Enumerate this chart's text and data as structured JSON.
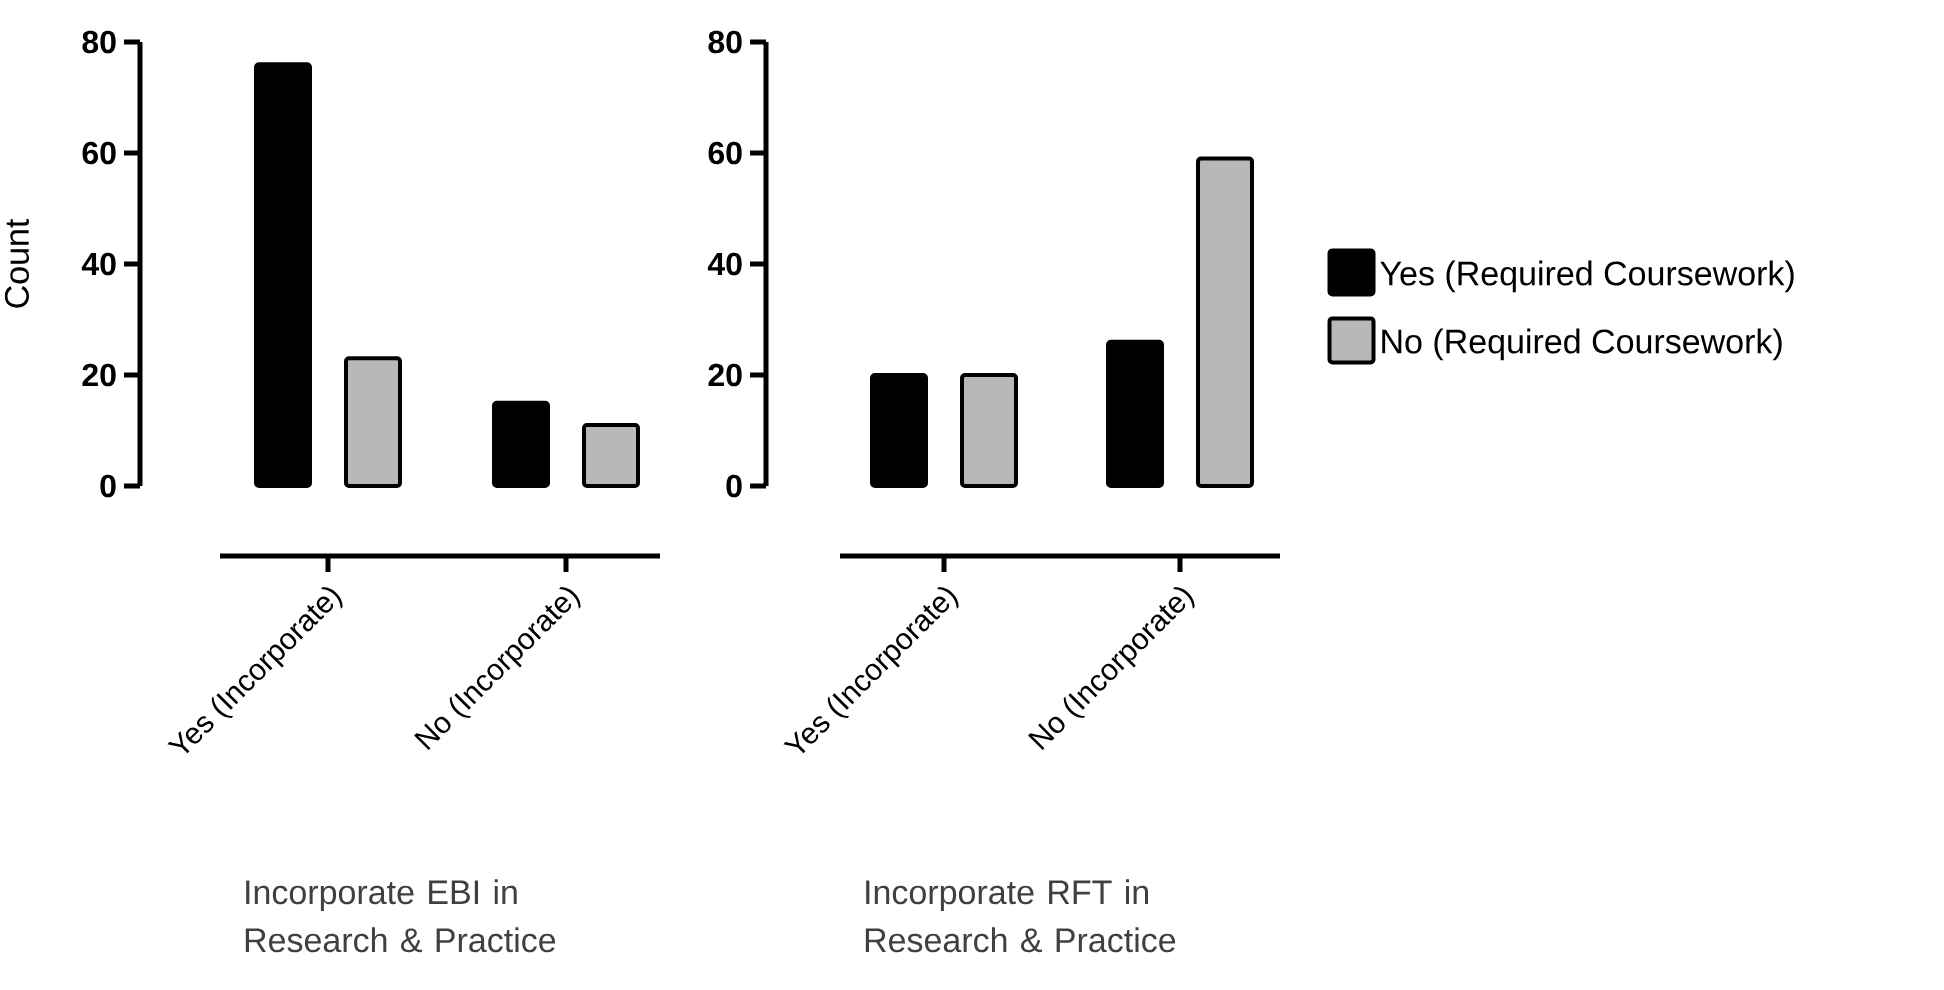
{
  "chart_data": [
    {
      "type": "bar",
      "xlabel": "Incorporate EBI in Research & Practice",
      "ylabel": "Count",
      "categories": [
        "Yes (Incorporate)",
        "No (Incorporate)"
      ],
      "ylim": [
        0,
        80
      ],
      "yticks": [
        0,
        20,
        40,
        60,
        80
      ],
      "legend": false,
      "series": [
        {
          "color": "#000000",
          "values": [
            76,
            15
          ]
        },
        {
          "color": "#b8b8b8",
          "values": [
            23,
            11
          ]
        }
      ]
    },
    {
      "type": "bar",
      "xlabel": "Incorporate RFT in Research & Practice",
      "categories": [
        "Yes (Incorporate)",
        "No (Incorporate)"
      ],
      "ylim": [
        0,
        80
      ],
      "yticks": [
        0,
        20,
        40,
        60,
        80
      ],
      "legend": "right",
      "series": [
        {
          "name": "Yes (Required Coursework)",
          "color": "#000000",
          "values": [
            20,
            26
          ]
        },
        {
          "name": "No (Required Coursework)",
          "color": "#b8b8b8",
          "values": [
            20,
            59
          ]
        }
      ]
    }
  ]
}
